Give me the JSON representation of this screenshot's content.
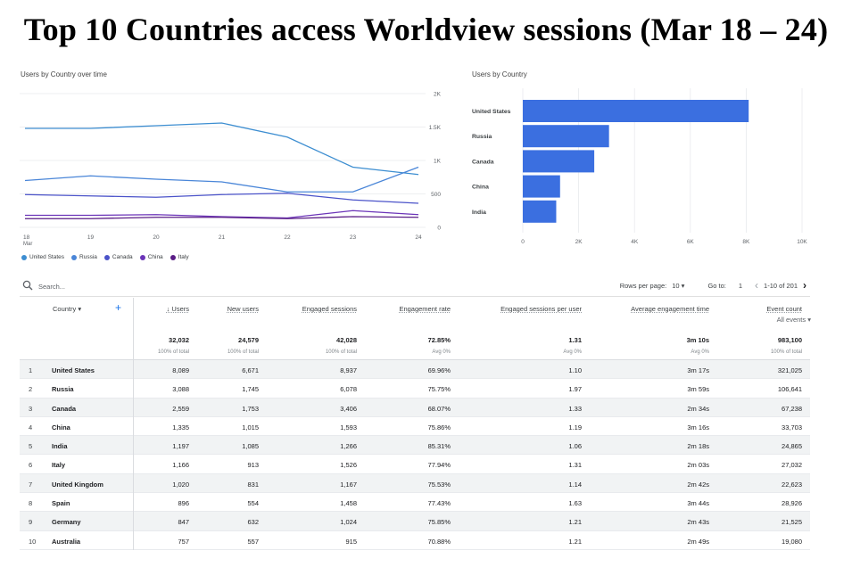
{
  "page": {
    "title": "Top 10 Countries access Worldview sessions (Mar 18 – 24)"
  },
  "line_chart": {
    "title": "Users by Country over time",
    "y_ticks": [
      "2K",
      "1.5K",
      "1K",
      "500",
      "0"
    ],
    "x_ticks": [
      "18",
      "19",
      "20",
      "21",
      "22",
      "23",
      "24"
    ],
    "x_sub": "Mar",
    "legend": [
      {
        "name": "United States",
        "color": "#3d8ed1"
      },
      {
        "name": "Russia",
        "color": "#4a86d8"
      },
      {
        "name": "Canada",
        "color": "#4b53c9"
      },
      {
        "name": "China",
        "color": "#6b34b8"
      },
      {
        "name": "Italy",
        "color": "#5a1d86"
      }
    ]
  },
  "bar_chart": {
    "title": "Users by Country",
    "x_ticks": [
      "0",
      "2K",
      "4K",
      "6K",
      "8K",
      "10K"
    ],
    "color": "#3b6fe0"
  },
  "chart_data": [
    {
      "type": "line",
      "title": "Users by Country over time",
      "categories": [
        "18",
        "19",
        "20",
        "21",
        "22",
        "23",
        "24"
      ],
      "ylim": [
        0,
        2000
      ],
      "series": [
        {
          "name": "United States",
          "values": [
            1480,
            1480,
            1520,
            1560,
            1350,
            900,
            790
          ]
        },
        {
          "name": "Russia",
          "values": [
            700,
            770,
            720,
            680,
            530,
            530,
            900
          ]
        },
        {
          "name": "Canada",
          "values": [
            490,
            470,
            450,
            490,
            510,
            410,
            360
          ]
        },
        {
          "name": "China",
          "values": [
            180,
            180,
            190,
            160,
            140,
            250,
            190
          ]
        },
        {
          "name": "Italy",
          "values": [
            130,
            130,
            150,
            150,
            130,
            160,
            150
          ]
        }
      ]
    },
    {
      "type": "bar",
      "orientation": "horizontal",
      "title": "Users by Country",
      "categories": [
        "United States",
        "Russia",
        "Canada",
        "China",
        "India"
      ],
      "values": [
        8089,
        3088,
        2559,
        1335,
        1197
      ],
      "xlim": [
        0,
        10000
      ]
    }
  ],
  "toolbar": {
    "search_placeholder": "Search...",
    "rows_per_page_label": "Rows per page:",
    "rows_per_page_value": "10",
    "go_to_label": "Go to:",
    "go_to_value": "1",
    "range_text": "1-10 of 201"
  },
  "table": {
    "country_header": "Country",
    "columns": [
      {
        "label": "Users",
        "total": "32,032",
        "pct": "100% of total",
        "sorted": true
      },
      {
        "label": "New users",
        "total": "24,579",
        "pct": "100% of total"
      },
      {
        "label": "Engaged sessions",
        "total": "42,028",
        "pct": "100% of total"
      },
      {
        "label": "Engagement rate",
        "total": "72.85%",
        "pct": "Avg 0%"
      },
      {
        "label": "Engaged sessions per user",
        "total": "1.31",
        "pct": "Avg 0%"
      },
      {
        "label": "Average engagement time",
        "total": "3m 10s",
        "pct": "Avg 0%"
      },
      {
        "label": "Event count",
        "sub": "All events",
        "total": "983,100",
        "pct": "100% of total"
      }
    ],
    "rows": [
      {
        "idx": "1",
        "country": "United States",
        "cells": [
          "8,089",
          "6,671",
          "8,937",
          "69.96%",
          "1.10",
          "3m 17s",
          "321,025"
        ]
      },
      {
        "idx": "2",
        "country": "Russia",
        "cells": [
          "3,088",
          "1,745",
          "6,078",
          "75.75%",
          "1.97",
          "3m 59s",
          "106,641"
        ]
      },
      {
        "idx": "3",
        "country": "Canada",
        "cells": [
          "2,559",
          "1,753",
          "3,406",
          "68.07%",
          "1.33",
          "2m 34s",
          "67,238"
        ]
      },
      {
        "idx": "4",
        "country": "China",
        "cells": [
          "1,335",
          "1,015",
          "1,593",
          "75.86%",
          "1.19",
          "3m 16s",
          "33,703"
        ]
      },
      {
        "idx": "5",
        "country": "India",
        "cells": [
          "1,197",
          "1,085",
          "1,266",
          "85.31%",
          "1.06",
          "2m 18s",
          "24,865"
        ]
      },
      {
        "idx": "6",
        "country": "Italy",
        "cells": [
          "1,166",
          "913",
          "1,526",
          "77.94%",
          "1.31",
          "2m 03s",
          "27,032"
        ]
      },
      {
        "idx": "7",
        "country": "United Kingdom",
        "cells": [
          "1,020",
          "831",
          "1,167",
          "75.53%",
          "1.14",
          "2m 42s",
          "22,623"
        ]
      },
      {
        "idx": "8",
        "country": "Spain",
        "cells": [
          "896",
          "554",
          "1,458",
          "77.43%",
          "1.63",
          "3m 44s",
          "28,926"
        ]
      },
      {
        "idx": "9",
        "country": "Germany",
        "cells": [
          "847",
          "632",
          "1,024",
          "75.85%",
          "1.21",
          "2m 43s",
          "21,525"
        ]
      },
      {
        "idx": "10",
        "country": "Australia",
        "cells": [
          "757",
          "557",
          "915",
          "70.88%",
          "1.21",
          "2m 49s",
          "19,080"
        ]
      }
    ]
  }
}
